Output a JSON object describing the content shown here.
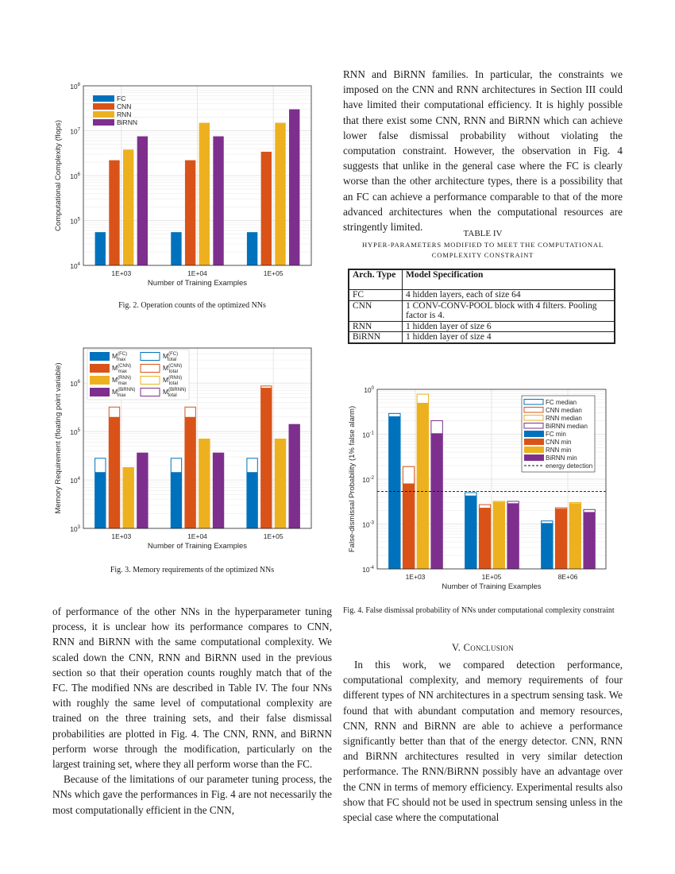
{
  "left_text": {
    "paragraphs": [
      "of performance of the other NNs in the hyperparameter tuning process, it is unclear how its performance compares to CNN, RNN and BiRNN with the same computational complexity. We scaled down the CNN, RNN and BiRNN used in the previous section so that their operation counts roughly match that of the FC. The modified NNs are described in Table IV. The four NNs with roughly the same level of computational complexity are trained on the three training sets, and their false dismissal probabilities are plotted in Fig. 4. The CNN, RNN, and BiRNN perform worse through the modification, particularly on the largest training set, where they all perform worse than the FC.",
      "Because of the limitations of our parameter tuning process, the NNs which gave the performances in Fig. 4 are not necessarily the most computationally efficient in the CNN,"
    ]
  },
  "right_text": {
    "paragraphs": [
      "RNN and BiRNN families. In particular, the constraints we imposed on the CNN and RNN architectures in Section III could have limited their computational efficiency. It is highly possible that there exist some CNN, RNN and BiRNN which can achieve lower false dismissal probability without violating the computation constraint. However, the observation in Fig. 4 suggests that unlike in the general case where the FC is clearly worse than the other architecture types, there is a possibility that an FC can achieve a performance comparable to that of the more advanced architectures when the computational resources are stringently limited."
    ]
  },
  "table": {
    "label": "TABLE IV",
    "caption_line1": "HYPER-PARAMETERS MODIFIED TO MEET THE COMPUTATIONAL",
    "caption_line2": "COMPLEXITY CONSTRAINT",
    "headers": [
      "Arch. Type",
      "Model Specification"
    ],
    "rows": [
      [
        "FC",
        "4 hidden layers, each of size 64"
      ],
      [
        "CNN",
        "1 CONV-CONV-POOL block with 4 filters. Pooling factor is 4."
      ],
      [
        "RNN",
        "1 hidden layer of size 6"
      ],
      [
        "BiRNN",
        "1 hidden layer of size 4"
      ]
    ]
  },
  "conclusion": {
    "heading": "V. Conclusion",
    "paragraph": "In this work, we compared detection performance, computational complexity, and memory requirements of four different types of NN architectures in a spectrum sensing task. We found that with abundant computation and memory resources, CNN, RNN and BiRNN are able to achieve a performance significantly better than that of the energy detector. CNN, RNN and BiRNN architectures resulted in very similar detection performance. The RNN/BiRNN possibly have an advantage over the CNN in terms of memory efficiency. Experimental results also show that FC should not be used in spectrum sensing unless in the special case where the computational"
  },
  "captions": {
    "fig2": "Fig. 2.  Operation counts of the optimized NNs",
    "fig3": "Fig. 3.  Memory requirements of the optimized NNs",
    "fig4": "Fig. 4.  False dismissal probability of NNs under computational complexity constraint"
  },
  "colors": {
    "FC": "#0072bd",
    "CNN": "#d95319",
    "RNN": "#edb120",
    "BiRNN": "#7e2f8e"
  },
  "chart_data": [
    {
      "type": "bar",
      "id": "fig2",
      "xlabel": "Number of Training Examples",
      "ylabel": "Computational Complexity (flops)",
      "yscale": "log",
      "ylim": [
        10000,
        100000000
      ],
      "ytick_exponents": [
        4,
        5,
        6,
        7,
        8
      ],
      "categories": [
        "1E+03",
        "1E+04",
        "1E+05"
      ],
      "grid": true,
      "legend": "top-left",
      "series": [
        {
          "name": "FC",
          "values": [
            55000,
            55000,
            55000
          ]
        },
        {
          "name": "CNN",
          "values": [
            2200000,
            2200000,
            3400000
          ]
        },
        {
          "name": "RNN",
          "values": [
            3800000,
            15000000,
            15000000
          ]
        },
        {
          "name": "BiRNN",
          "values": [
            7500000,
            7500000,
            30000000
          ]
        }
      ]
    },
    {
      "type": "bar",
      "id": "fig3",
      "xlabel": "Number of Training Examples",
      "ylabel": "Memory Requirement (floating point variable)",
      "yscale": "log",
      "ylim": [
        1000,
        5300000
      ],
      "ytick_exponents": [
        3,
        4,
        5,
        6
      ],
      "categories": [
        "1E+03",
        "1E+04",
        "1E+05"
      ],
      "grid": true,
      "legend": "top-left",
      "series": [
        {
          "name": "FC",
          "legend_max": {
            "base": "M",
            "sup": "(FC)",
            "sub": "max"
          },
          "legend_total": {
            "base": "M",
            "sup": "(FC)",
            "sub": "total"
          },
          "max": [
            14500,
            14500,
            14500
          ],
          "total": [
            28000,
            28000,
            28000
          ]
        },
        {
          "name": "CNN",
          "legend_max": {
            "base": "M",
            "sup": "(CNN)",
            "sub": "max"
          },
          "legend_total": {
            "base": "M",
            "sup": "(CNN)",
            "sub": "total"
          },
          "max": [
            200000,
            200000,
            800000
          ],
          "total": [
            320000,
            320000,
            870000
          ]
        },
        {
          "name": "RNN",
          "legend_max": {
            "base": "M",
            "sup": "(RNN)",
            "sub": "max"
          },
          "legend_total": {
            "base": "M",
            "sup": "(RNN)",
            "sub": "total"
          },
          "max": [
            18000,
            70000,
            70000
          ],
          "total": [
            18000,
            70000,
            70000
          ]
        },
        {
          "name": "BiRNN",
          "legend_max": {
            "base": "M",
            "sup": "(BiRNN)",
            "sub": "max"
          },
          "legend_total": {
            "base": "M",
            "sup": "(BiRNN)",
            "sub": "total"
          },
          "max": [
            36000,
            36000,
            140000
          ],
          "total": [
            36000,
            36000,
            140000
          ]
        }
      ]
    },
    {
      "type": "bar",
      "id": "fig4",
      "xlabel": "Number of Training Examples",
      "ylabel": "False-dismissal Probability (1% false alarm)",
      "yscale": "log",
      "ylim": [
        0.0001,
        1
      ],
      "ytick_exponents": [
        -4,
        -3,
        -2,
        -1,
        0
      ],
      "categories": [
        "1E+03",
        "1E+05",
        "8E+06"
      ],
      "grid": true,
      "legend": "top-right",
      "series": [
        {
          "name": "FC",
          "median_label": "FC median",
          "min_label": "FC min",
          "median": [
            0.29,
            0.005,
            0.00117
          ],
          "min": [
            0.25,
            0.0043,
            0.00105
          ]
        },
        {
          "name": "CNN",
          "median_label": "CNN median",
          "min_label": "CNN min",
          "median": [
            0.019,
            0.0027,
            0.0023
          ],
          "min": [
            0.008,
            0.0023,
            0.0022
          ]
        },
        {
          "name": "RNN",
          "median_label": "RNN median",
          "min_label": "RNN min",
          "median": [
            0.78,
            0.0032,
            0.003
          ],
          "min": [
            0.5,
            0.0031,
            0.0029
          ]
        },
        {
          "name": "BiRNN",
          "median_label": "BiRNN median",
          "min_label": "BiRNN min",
          "median": [
            0.2,
            0.0032,
            0.0021
          ],
          "min": [
            0.105,
            0.0029,
            0.00185
          ]
        }
      ],
      "reference_line": {
        "name": "energy detection",
        "value": 0.0053
      }
    }
  ]
}
